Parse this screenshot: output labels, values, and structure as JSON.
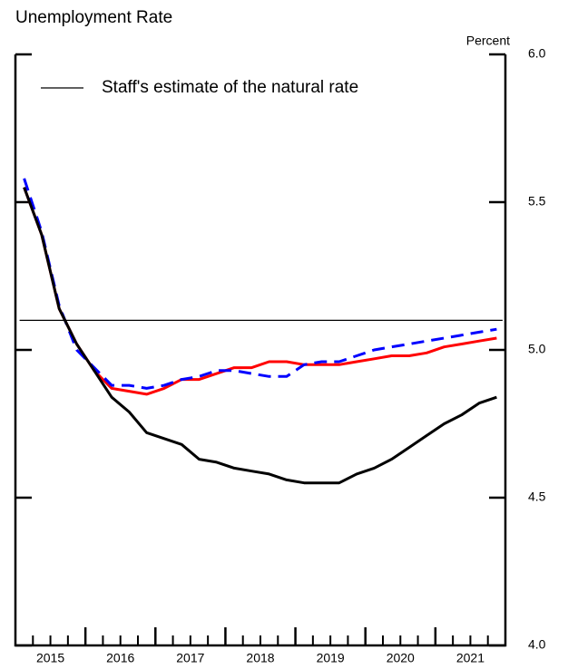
{
  "chart_data": {
    "type": "line",
    "title": "Unemployment Rate",
    "y_unit": "Percent",
    "x": [
      2015.125,
      2015.375,
      2015.625,
      2015.875,
      2016.125,
      2016.375,
      2016.625,
      2016.875,
      2017.125,
      2017.375,
      2017.625,
      2017.875,
      2018.125,
      2018.375,
      2018.625,
      2018.875,
      2019.125,
      2019.375,
      2019.625,
      2019.875,
      2020.125,
      2020.375,
      2020.625,
      2020.875,
      2021.125,
      2021.375,
      2021.625,
      2021.875
    ],
    "series": [
      {
        "color": "#ff0000",
        "dash": false,
        "width": 3,
        "values": [
          5.55,
          5.39,
          5.14,
          5.02,
          4.93,
          4.87,
          4.86,
          4.85,
          4.87,
          4.9,
          4.9,
          4.92,
          4.94,
          4.94,
          4.96,
          4.96,
          4.95,
          4.95,
          4.95,
          4.96,
          4.97,
          4.98,
          4.98,
          4.99,
          5.01,
          5.02,
          5.03,
          5.04
        ]
      },
      {
        "color": "#0000ff",
        "dash": true,
        "width": 3,
        "values": [
          5.58,
          5.4,
          5.15,
          5.0,
          4.94,
          4.88,
          4.88,
          4.87,
          4.88,
          4.9,
          4.91,
          4.93,
          4.93,
          4.92,
          4.91,
          4.91,
          4.95,
          4.96,
          4.96,
          4.98,
          5.0,
          5.01,
          5.02,
          5.03,
          5.04,
          5.05,
          5.06,
          5.07
        ]
      },
      {
        "color": "#000000",
        "dash": false,
        "width": 3,
        "values": [
          5.55,
          5.39,
          5.14,
          5.02,
          4.93,
          4.84,
          4.79,
          4.72,
          4.7,
          4.68,
          4.63,
          4.62,
          4.6,
          4.59,
          4.58,
          4.56,
          4.55,
          4.55,
          4.55,
          4.58,
          4.6,
          4.63,
          4.67,
          4.71,
          4.75,
          4.78,
          4.82,
          4.84
        ]
      },
      {
        "name": "Staff's estimate of the natural rate",
        "color": "#000000",
        "dash": false,
        "width": 1.3,
        "x": [
          2015.06,
          2021.96
        ],
        "values": [
          5.1,
          5.1
        ]
      }
    ],
    "xlim": [
      2015,
      2022
    ],
    "xticks": [
      {
        "value": 2015.5,
        "label": "2015"
      },
      {
        "value": 2016.5,
        "label": "2016"
      },
      {
        "value": 2017.5,
        "label": "2017"
      },
      {
        "value": 2018.5,
        "label": "2018"
      },
      {
        "value": 2019.5,
        "label": "2019"
      },
      {
        "value": 2020.5,
        "label": "2020"
      },
      {
        "value": 2021.5,
        "label": "2021"
      }
    ],
    "major_xticks": [
      2016,
      2017,
      2018,
      2019,
      2020,
      2021
    ],
    "minor_xticks": [
      2015.25,
      2015.5,
      2015.75,
      2016.25,
      2016.5,
      2016.75,
      2017.25,
      2017.5,
      2017.75,
      2018.25,
      2018.5,
      2018.75,
      2019.25,
      2019.5,
      2019.75,
      2020.25,
      2020.5,
      2020.75,
      2021.25,
      2021.5,
      2021.75
    ],
    "ylim": [
      4.0,
      6.0
    ],
    "yticks": [
      {
        "value": 4.0,
        "label": "4.0"
      },
      {
        "value": 4.5,
        "label": "4.5"
      },
      {
        "value": 5.0,
        "label": "5.0"
      },
      {
        "value": 5.5,
        "label": "5.5"
      },
      {
        "value": 6.0,
        "label": "6.0"
      }
    ],
    "legend": "upper-left",
    "grid": false
  }
}
